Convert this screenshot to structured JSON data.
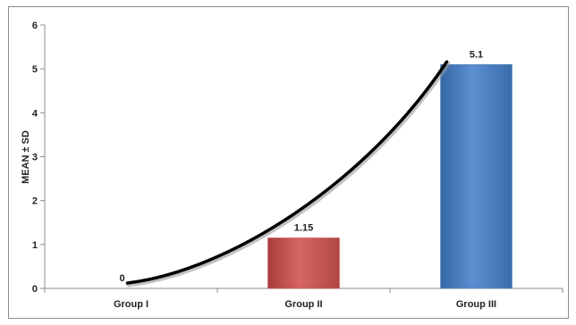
{
  "chart_data": {
    "type": "bar",
    "categories": [
      "Group I",
      "Group II",
      "Group III"
    ],
    "values": [
      0,
      1.15,
      5.1
    ],
    "data_labels": [
      "0",
      "1.15",
      "5.1"
    ],
    "ylabel": "MEAN ± SD",
    "ylim": [
      0,
      6
    ],
    "yticks": [
      "0",
      "1",
      "2",
      "3",
      "4",
      "5",
      "6"
    ],
    "bar_colors": [
      "#4f81bd",
      "#c0504d",
      "#4f81bd"
    ],
    "trend_line": {
      "type": "smooth curve through data points",
      "color": "#000000"
    },
    "grid": false,
    "legend": "none"
  }
}
